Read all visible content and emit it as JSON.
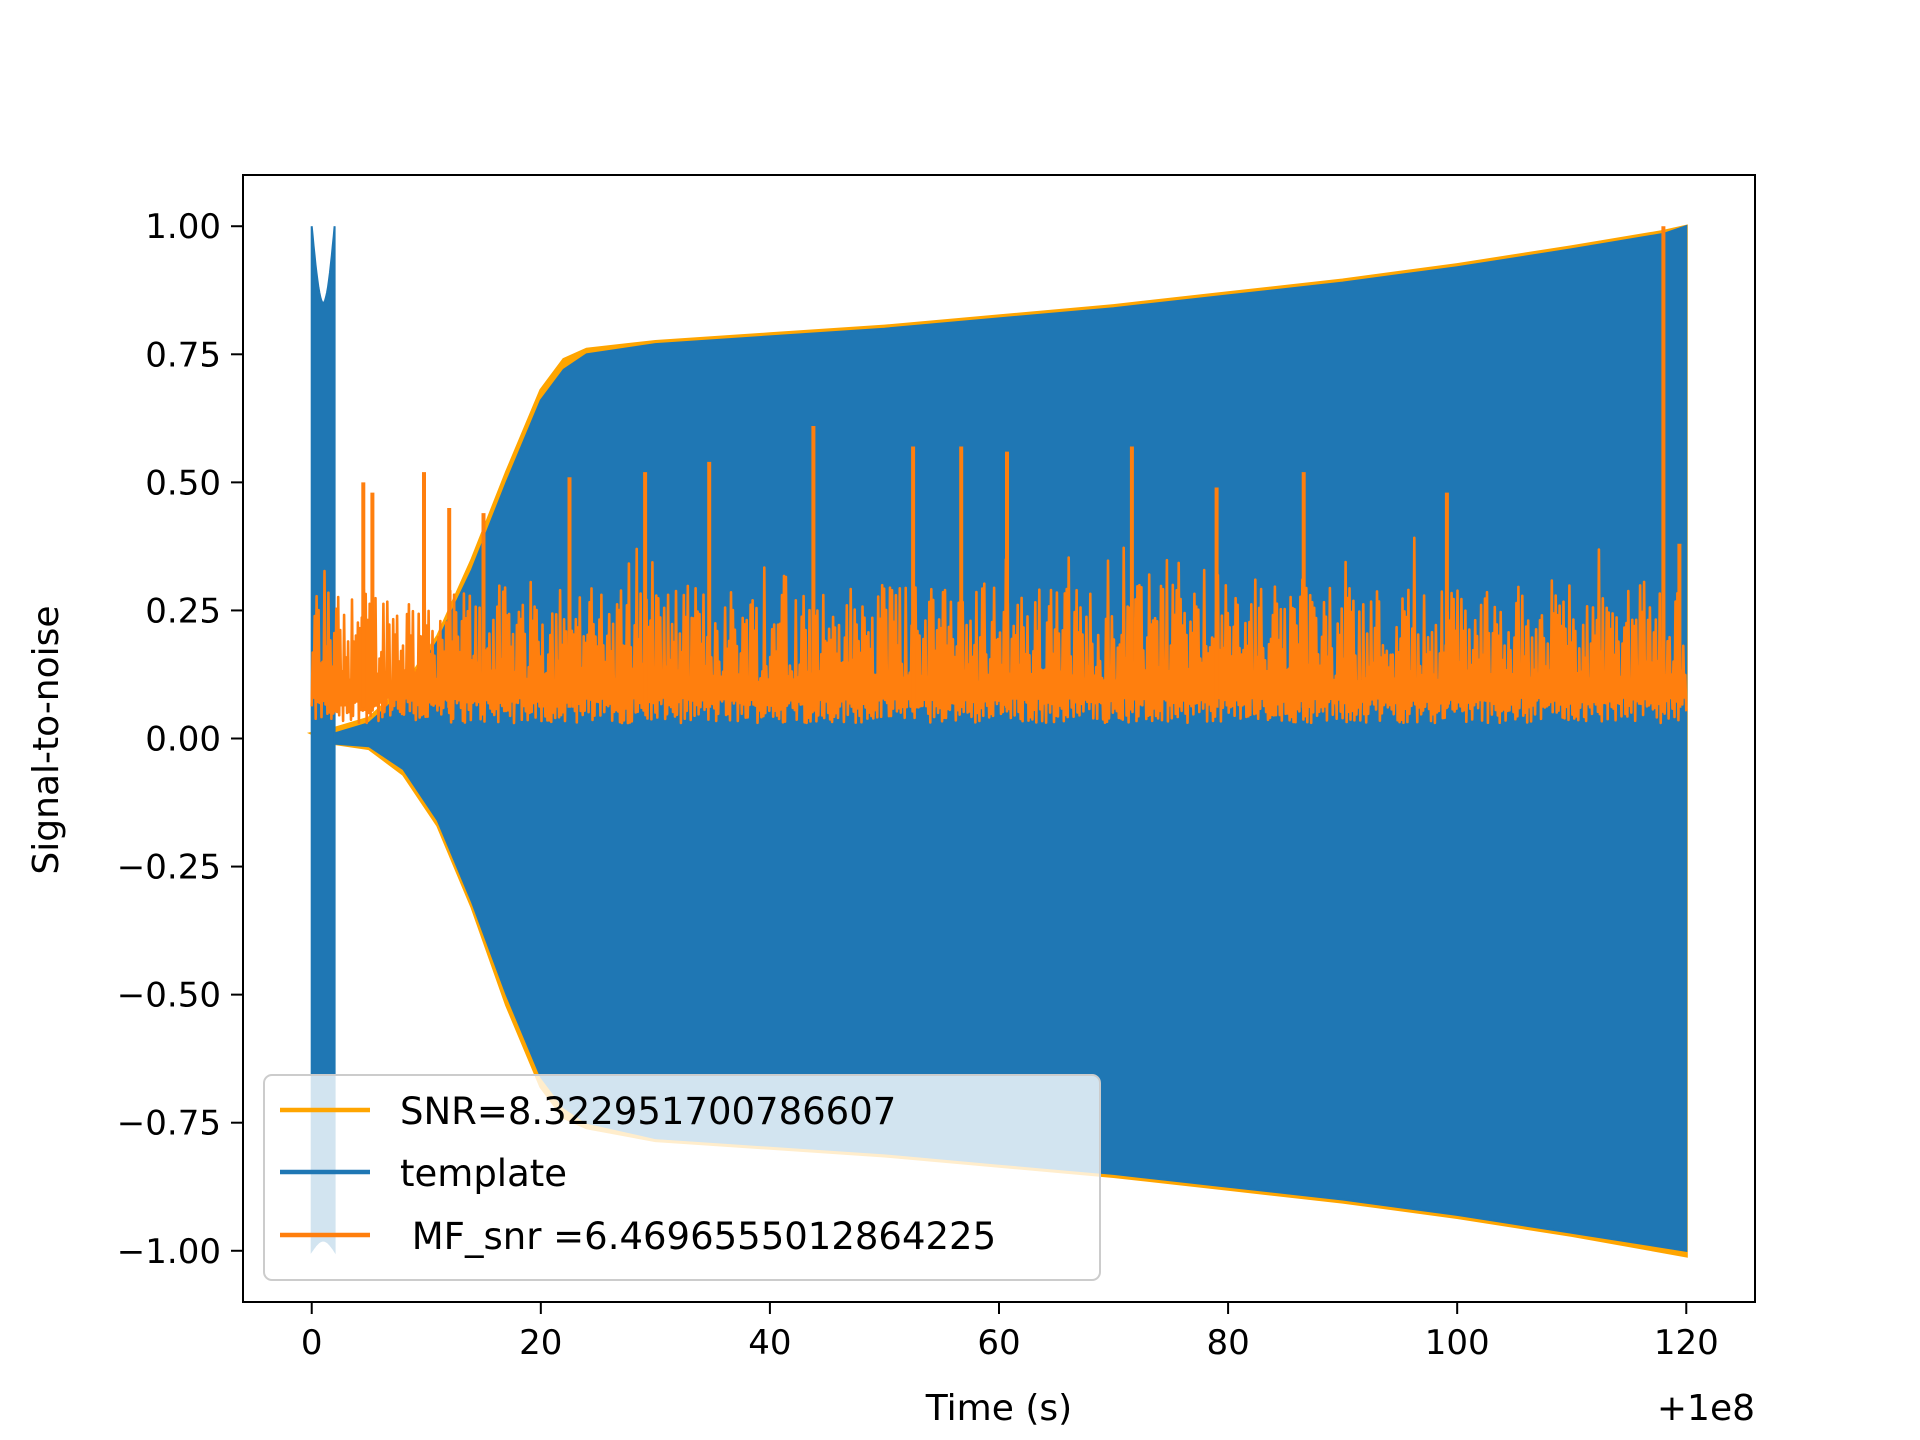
{
  "chart_data": {
    "type": "line",
    "title": "",
    "xlabel": "Time (s)",
    "ylabel": "Signal-to-noise",
    "x_offset_label": "+1e8",
    "xlim": [
      -6,
      126
    ],
    "ylim": [
      -1.1,
      1.1
    ],
    "x_ticks": [
      0,
      20,
      40,
      60,
      80,
      100,
      120
    ],
    "y_ticks": [
      1.0,
      0.75,
      0.5,
      0.25,
      0.0,
      -0.25,
      -0.5,
      -0.75,
      -1.0
    ],
    "x_tick_labels": [
      "0",
      "20",
      "40",
      "60",
      "80",
      "100",
      "120"
    ],
    "y_tick_labels": [
      "1.00",
      "0.75",
      "0.50",
      "0.25",
      "0.00",
      "−0.25",
      "−0.50",
      "−0.75",
      "−1.00"
    ],
    "grid": false,
    "legend_position": "lower-left",
    "series": [
      {
        "name": "SNR=8.322951700786607",
        "color": "#ffa500",
        "kind": "envelope",
        "upper": [
          [
            0,
            0.01
          ],
          [
            2,
            0.02
          ],
          [
            5,
            0.04
          ],
          [
            8,
            0.1
          ],
          [
            11,
            0.2
          ],
          [
            14,
            0.35
          ],
          [
            17,
            0.52
          ],
          [
            20,
            0.68
          ],
          [
            22,
            0.74
          ],
          [
            24,
            0.76
          ],
          [
            30,
            0.775
          ],
          [
            40,
            0.79
          ],
          [
            50,
            0.805
          ],
          [
            60,
            0.825
          ],
          [
            70,
            0.845
          ],
          [
            80,
            0.87
          ],
          [
            90,
            0.895
          ],
          [
            100,
            0.925
          ],
          [
            110,
            0.96
          ],
          [
            118,
            0.99
          ],
          [
            120,
            1.0
          ]
        ],
        "lower": [
          [
            2,
            -0.01
          ],
          [
            5,
            -0.02
          ],
          [
            8,
            -0.07
          ],
          [
            11,
            -0.17
          ],
          [
            14,
            -0.33
          ],
          [
            17,
            -0.52
          ],
          [
            20,
            -0.68
          ],
          [
            22,
            -0.74
          ],
          [
            24,
            -0.76
          ],
          [
            30,
            -0.785
          ],
          [
            40,
            -0.8
          ],
          [
            50,
            -0.815
          ],
          [
            60,
            -0.835
          ],
          [
            70,
            -0.855
          ],
          [
            80,
            -0.88
          ],
          [
            90,
            -0.905
          ],
          [
            100,
            -0.935
          ],
          [
            110,
            -0.97
          ],
          [
            120,
            -1.01
          ]
        ]
      },
      {
        "name": "template",
        "color": "#1f77b4",
        "kind": "envelope",
        "upper": [
          [
            0,
            0.0
          ],
          [
            2,
            0.01
          ],
          [
            5,
            0.03
          ],
          [
            8,
            0.09
          ],
          [
            11,
            0.19
          ],
          [
            14,
            0.33
          ],
          [
            17,
            0.5
          ],
          [
            20,
            0.66
          ],
          [
            22,
            0.72
          ],
          [
            24,
            0.75
          ],
          [
            30,
            0.77
          ],
          [
            40,
            0.785
          ],
          [
            50,
            0.8
          ],
          [
            60,
            0.82
          ],
          [
            70,
            0.84
          ],
          [
            80,
            0.865
          ],
          [
            90,
            0.89
          ],
          [
            100,
            0.92
          ],
          [
            110,
            0.955
          ],
          [
            118,
            0.985
          ],
          [
            120,
            1.0
          ]
        ],
        "lower": [
          [
            2,
            -0.01
          ],
          [
            5,
            -0.015
          ],
          [
            8,
            -0.06
          ],
          [
            11,
            -0.16
          ],
          [
            14,
            -0.32
          ],
          [
            17,
            -0.5
          ],
          [
            20,
            -0.66
          ],
          [
            22,
            -0.72
          ],
          [
            24,
            -0.75
          ],
          [
            30,
            -0.78
          ],
          [
            40,
            -0.795
          ],
          [
            50,
            -0.81
          ],
          [
            60,
            -0.83
          ],
          [
            70,
            -0.85
          ],
          [
            80,
            -0.875
          ],
          [
            90,
            -0.9
          ],
          [
            100,
            -0.93
          ],
          [
            110,
            -0.965
          ],
          [
            120,
            -1.0
          ]
        ],
        "start_burst": {
          "x": [
            0,
            2
          ],
          "ylim": [
            -1.0,
            1.0
          ]
        }
      },
      {
        "name": " MF_snr =6.4696555012864225",
        "color": "#ff7f0e",
        "kind": "noise",
        "x_range": [
          0,
          120
        ],
        "baseline": [
          0.03,
          0.3
        ],
        "peaks": [
          [
            4.5,
            0.5
          ],
          [
            5.3,
            0.48
          ],
          [
            9.8,
            0.52
          ],
          [
            12,
            0.45
          ],
          [
            15,
            0.44
          ],
          [
            22.5,
            0.51
          ],
          [
            29.1,
            0.52
          ],
          [
            34.7,
            0.54
          ],
          [
            43.8,
            0.61
          ],
          [
            52.5,
            0.57
          ],
          [
            56.7,
            0.57
          ],
          [
            60.7,
            0.56
          ],
          [
            71.6,
            0.57
          ],
          [
            79,
            0.49
          ],
          [
            86.6,
            0.52
          ],
          [
            99.1,
            0.48
          ],
          [
            118,
            1.0
          ],
          [
            119.4,
            0.38
          ]
        ]
      }
    ]
  }
}
